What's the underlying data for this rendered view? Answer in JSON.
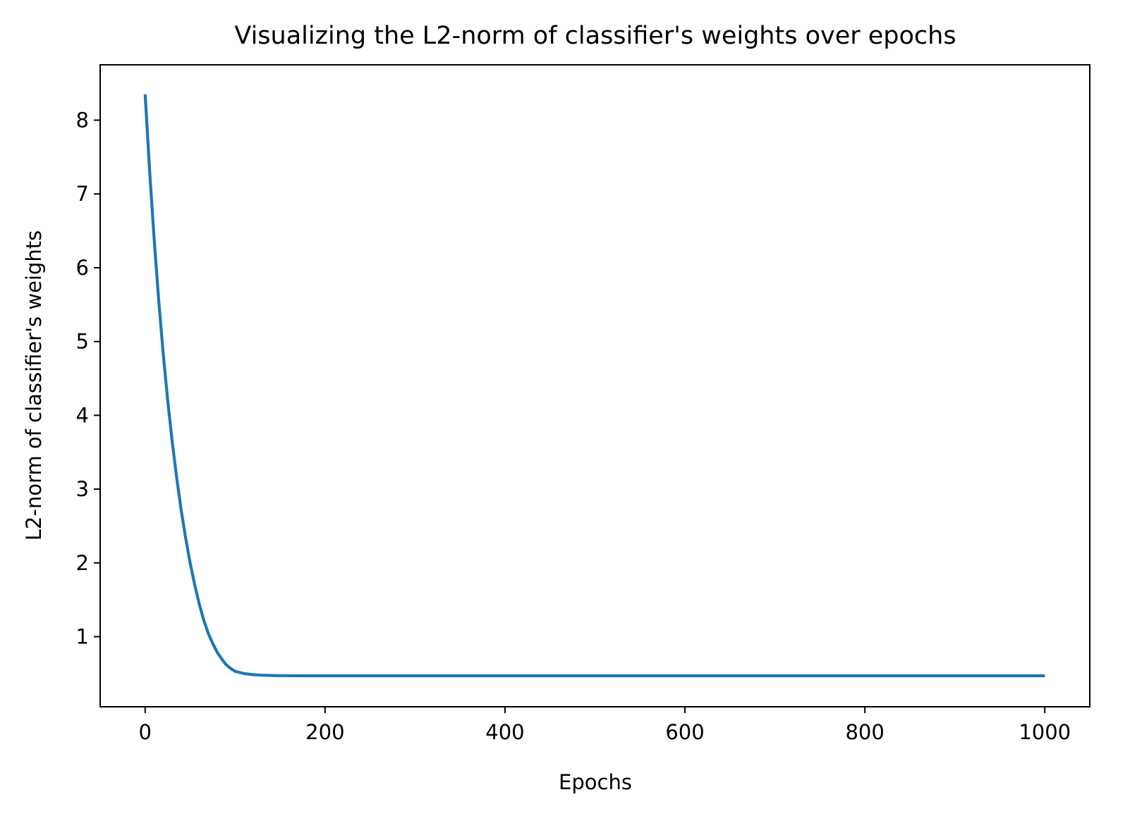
{
  "chart_data": {
    "type": "line",
    "title": "Visualizing the L2-norm of classifier's weights over epochs",
    "xlabel": "Epochs",
    "ylabel": "L2-norm of classifier's weights",
    "xlim": [
      -50,
      1050
    ],
    "ylim": [
      0.05,
      8.75
    ],
    "xticks": [
      0,
      200,
      400,
      600,
      800,
      1000
    ],
    "xtick_labels": [
      "0",
      "200",
      "400",
      "600",
      "800",
      "1000"
    ],
    "yticks": [
      1,
      2,
      3,
      4,
      5,
      6,
      7,
      8
    ],
    "ytick_labels": [
      "1",
      "2",
      "3",
      "4",
      "5",
      "6",
      "7",
      "8"
    ],
    "grid": false,
    "series": [
      {
        "color": "#1f77b4",
        "x": [
          0,
          5,
          10,
          15,
          20,
          25,
          30,
          35,
          40,
          45,
          50,
          55,
          60,
          65,
          70,
          75,
          80,
          85,
          90,
          95,
          100,
          110,
          120,
          130,
          140,
          150,
          175,
          200,
          250,
          300,
          400,
          500,
          600,
          700,
          800,
          900,
          1000
        ],
        "y": [
          8.35,
          7.31,
          6.39,
          5.57,
          4.85,
          4.21,
          3.65,
          3.16,
          2.72,
          2.34,
          2.0,
          1.71,
          1.45,
          1.23,
          1.05,
          0.91,
          0.79,
          0.7,
          0.62,
          0.57,
          0.53,
          0.5,
          0.485,
          0.478,
          0.474,
          0.472,
          0.47,
          0.47,
          0.47,
          0.47,
          0.47,
          0.47,
          0.47,
          0.47,
          0.47,
          0.47,
          0.47
        ]
      }
    ]
  }
}
